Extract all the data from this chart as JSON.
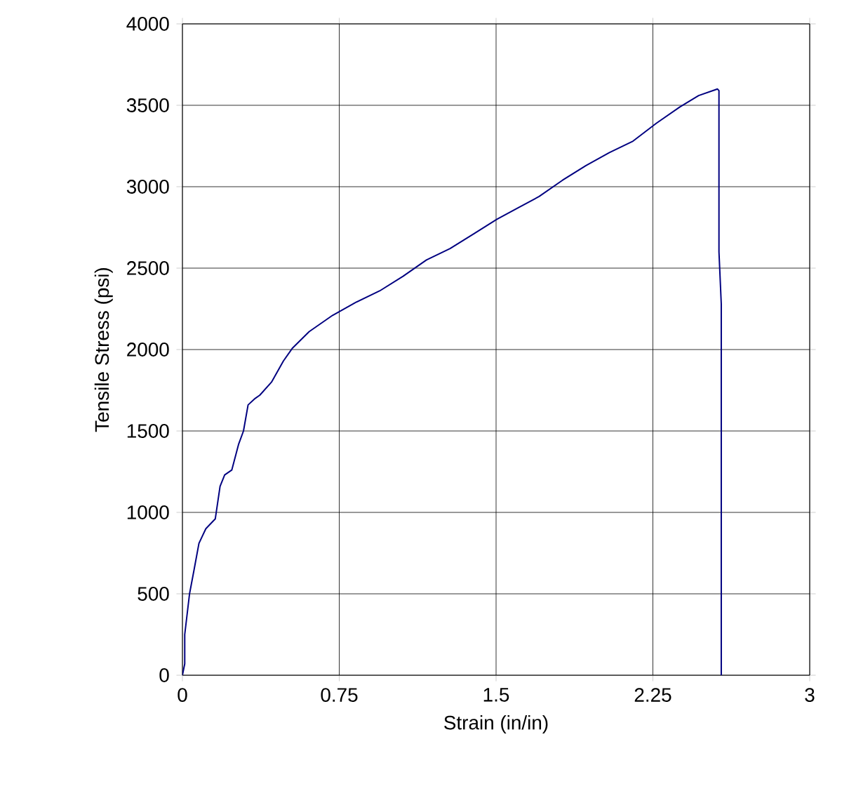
{
  "chart_data": {
    "type": "line",
    "xlabel": "Strain (in/in)",
    "ylabel": "Tensile Stress (psi)",
    "x": [
      0.0,
      0.011,
      0.011,
      0.034,
      0.056,
      0.079,
      0.112,
      0.157,
      0.18,
      0.202,
      0.236,
      0.269,
      0.292,
      0.314,
      0.348,
      0.37,
      0.426,
      0.483,
      0.527,
      0.606,
      0.718,
      0.83,
      0.943,
      1.055,
      1.167,
      1.28,
      1.392,
      1.504,
      1.605,
      1.706,
      1.818,
      1.93,
      2.042,
      2.155,
      2.267,
      2.379,
      2.469,
      2.559,
      2.566,
      2.566,
      2.577,
      2.577
    ],
    "series": [
      {
        "color": "#000080",
        "values": [
          0,
          70,
          250,
          500,
          650,
          810,
          900,
          960,
          1160,
          1230,
          1260,
          1420,
          1500,
          1660,
          1700,
          1720,
          1800,
          1930,
          2010,
          2110,
          2210,
          2290,
          2360,
          2450,
          2550,
          2620,
          2710,
          2800,
          2870,
          2940,
          3040,
          3130,
          3210,
          3280,
          3390,
          3490,
          3560,
          3600,
          3590,
          2600,
          2280,
          0
        ]
      }
    ],
    "xlim": [
      0,
      3
    ],
    "ylim": [
      0,
      4000
    ],
    "xticks": [
      0,
      0.75,
      1.5,
      2.25,
      3
    ],
    "yticks": [
      0,
      500,
      1000,
      1500,
      2000,
      2500,
      3000,
      3500,
      4000
    ],
    "grid": true,
    "marker": "none",
    "line_style": "solid"
  }
}
